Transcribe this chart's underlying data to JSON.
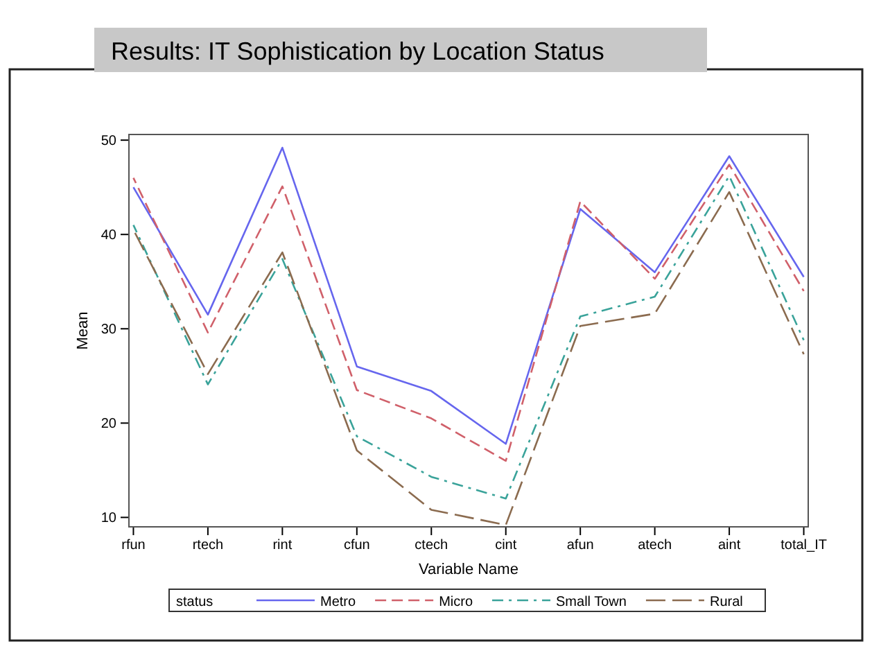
{
  "chart_data": {
    "type": "line",
    "title": "Results: IT Sophistication by Location Status",
    "xlabel": "Variable Name",
    "ylabel": "Mean",
    "legend_title": "status",
    "legend": "bottom",
    "grid": false,
    "categories": [
      "rfun",
      "rtech",
      "rint",
      "cfun",
      "ctech",
      "cint",
      "afun",
      "atech",
      "aint",
      "total_IT"
    ],
    "ylim": [
      9,
      50.6
    ],
    "yticks": [
      10,
      20,
      30,
      40,
      50
    ],
    "series": [
      {
        "name": "Metro",
        "color": "#6666ee",
        "line_style": "solid",
        "values": [
          45,
          31.5,
          49.2,
          26,
          23.4,
          17.8,
          42.7,
          36,
          48.3,
          35.5
        ]
      },
      {
        "name": "Micro",
        "color": "#d0606a",
        "line_style": "dashed",
        "values": [
          46,
          29.6,
          45.1,
          23.5,
          20.5,
          16,
          43.5,
          35.3,
          47.4,
          34
        ]
      },
      {
        "name": "Small Town",
        "color": "#3aa39a",
        "line_style": "dashed",
        "values": [
          41,
          24.1,
          37.4,
          18.6,
          14.3,
          12,
          31.3,
          33.4,
          46.2,
          28.8
        ]
      },
      {
        "name": "Rural",
        "color": "#8b6b4f",
        "line_style": "dashed",
        "values": [
          40.5,
          25.2,
          38.1,
          17.1,
          10.8,
          9.2,
          30.3,
          31.6,
          44.5,
          27.3
        ]
      }
    ]
  }
}
